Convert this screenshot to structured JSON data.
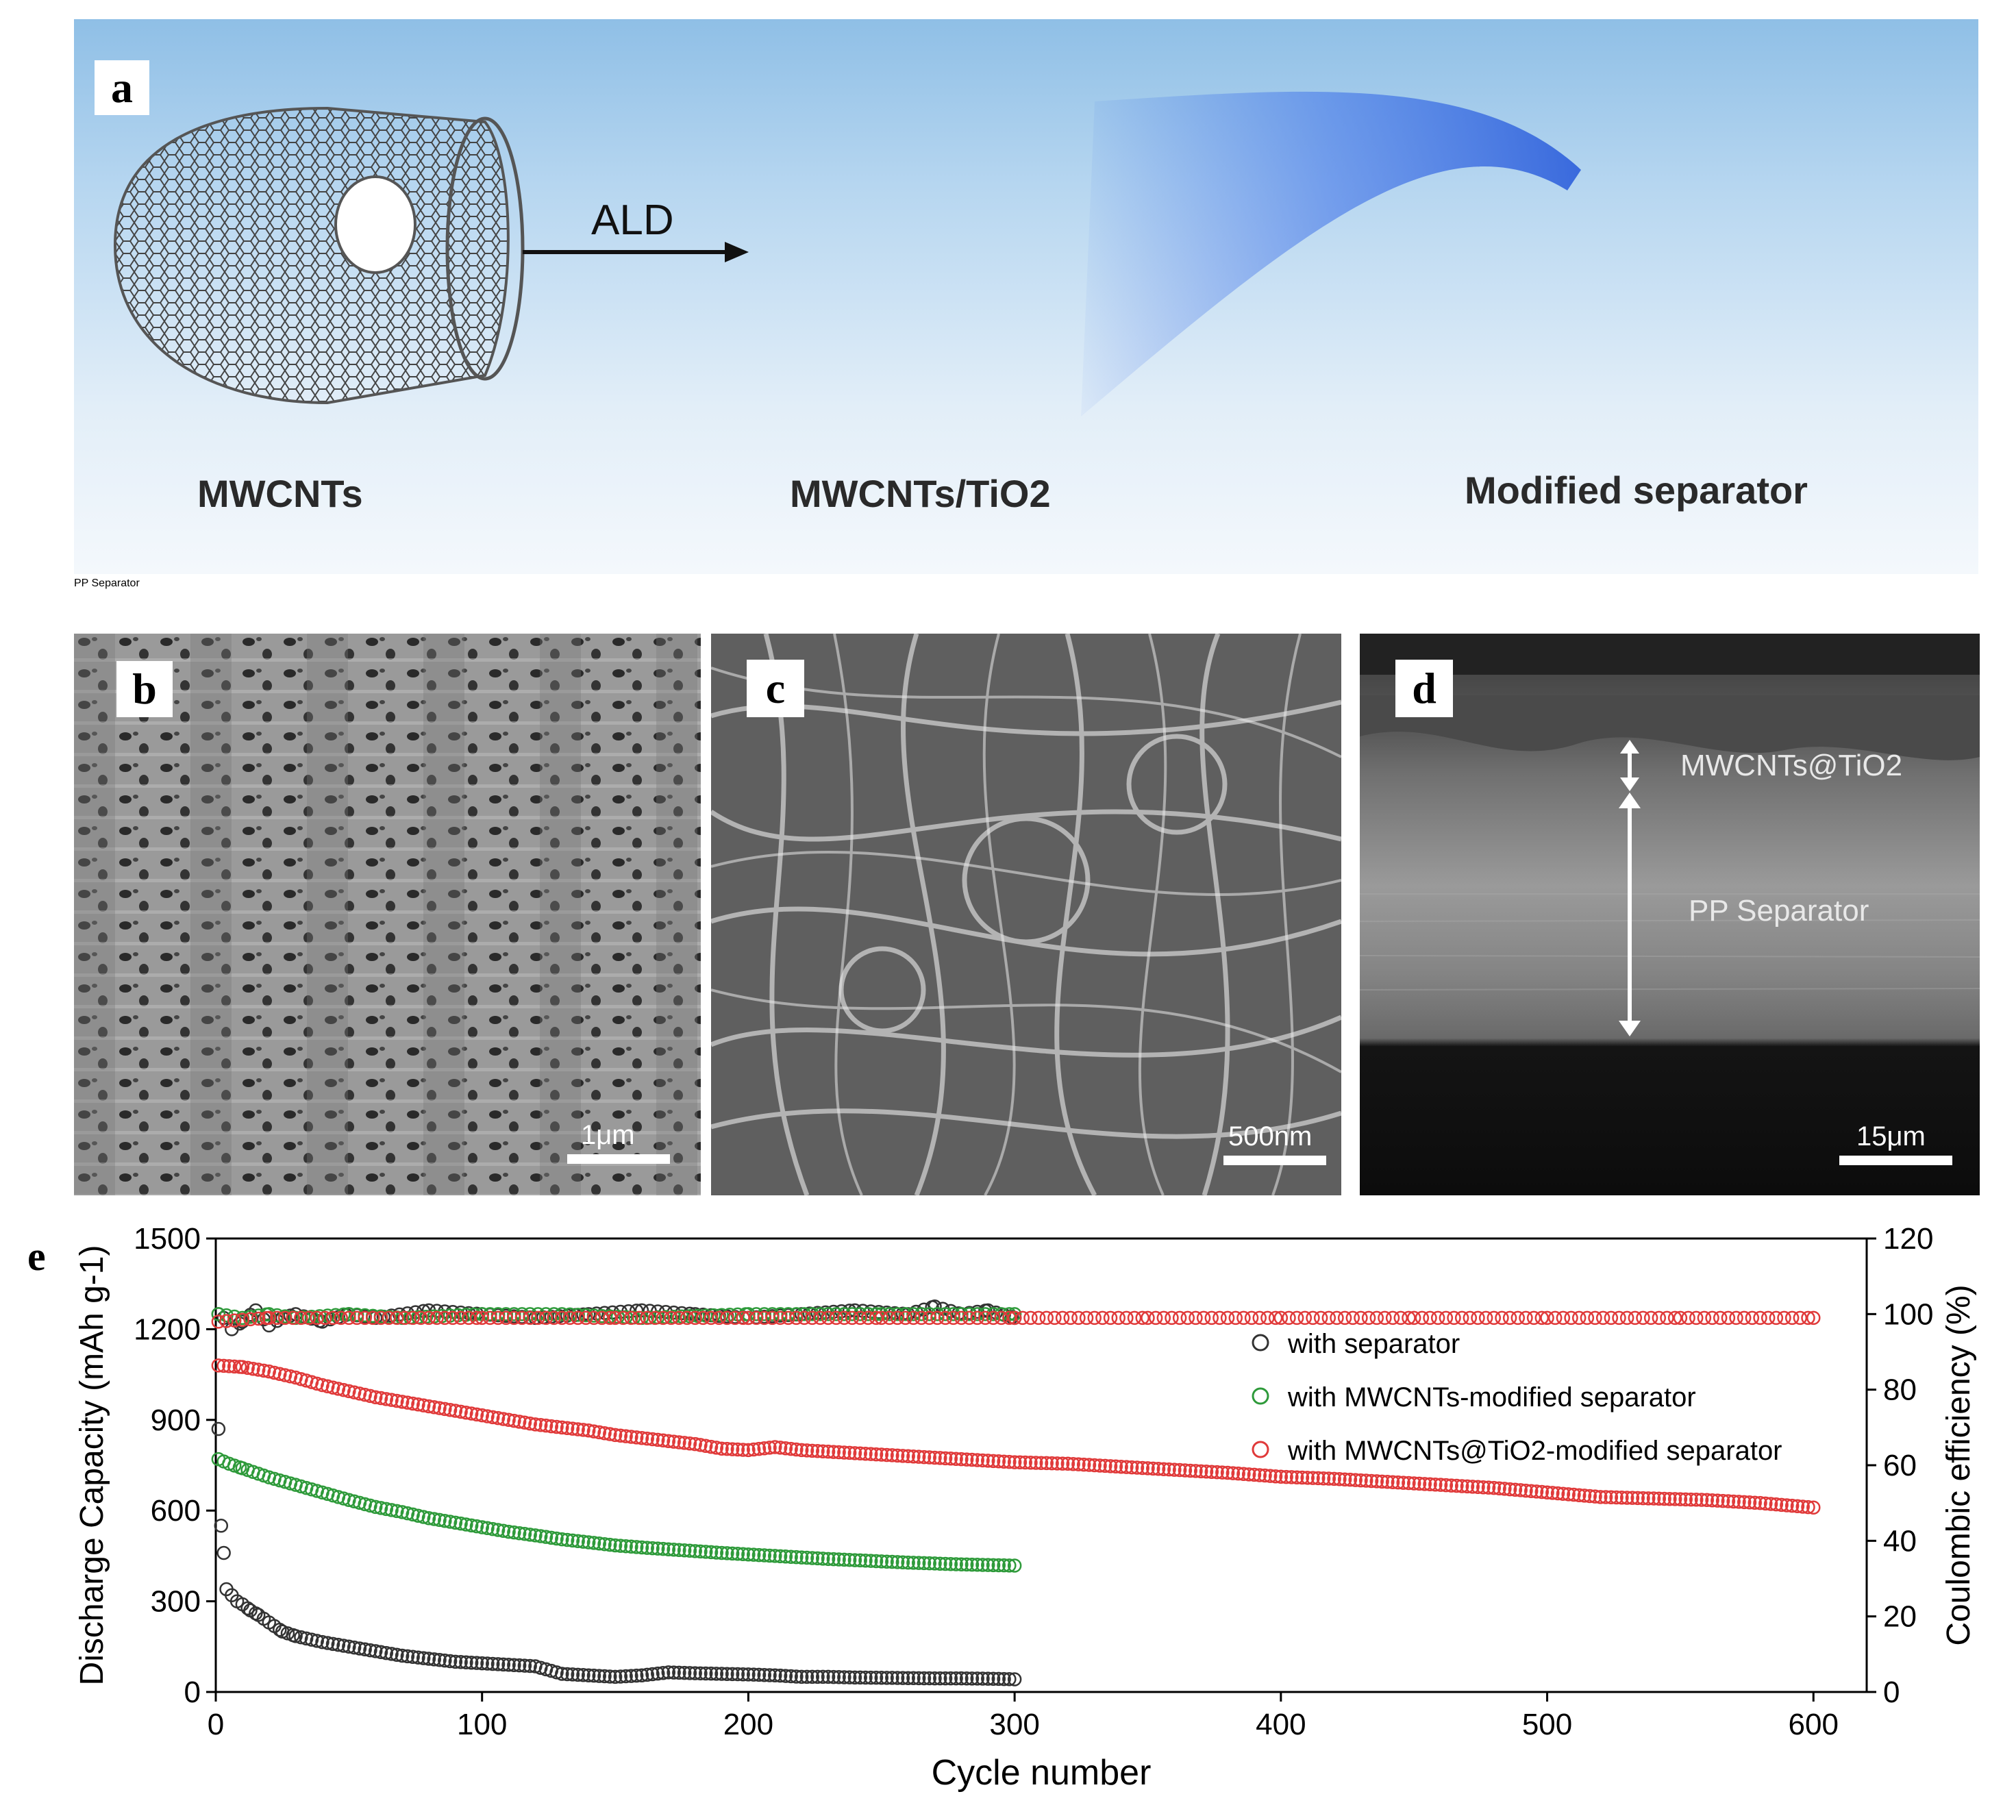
{
  "panel_a": {
    "letter": "a",
    "step_label": "ALD",
    "labels": [
      "MWCNTs",
      "MWCNTs/TiO2",
      "Modified separator"
    ],
    "separator_text": "PP Separator",
    "colors": {
      "sky": "#9cc7ea",
      "tube": "#5a5a5a",
      "tio2": "#7b3fb6",
      "disk": "#8a8a8a"
    }
  },
  "panel_b": {
    "letter": "b",
    "scale": "1μm"
  },
  "panel_c": {
    "letter": "c",
    "scale": "500nm"
  },
  "panel_d": {
    "letter": "d",
    "scale": "15μm",
    "annot_top": "MWCNTs@TiO2",
    "annot_mid": "PP Separator"
  },
  "panel_e": {
    "letter": "e"
  },
  "chart_data": {
    "type": "scatter",
    "xlabel": "Cycle number",
    "ylabel": "Discharge Capacity (mAh g-1)",
    "ylabel_right": "Coulombic efficiency (%)",
    "xlim": [
      0,
      620
    ],
    "ylim": [
      0,
      1500
    ],
    "ylim_right": [
      0,
      120
    ],
    "x_ticks": [
      0,
      100,
      200,
      300,
      400,
      500,
      600
    ],
    "y_ticks": [
      0,
      300,
      600,
      900,
      1200,
      1500
    ],
    "y_ticks_right": [
      0,
      20,
      40,
      60,
      80,
      100,
      120
    ],
    "legend_position": "right",
    "series": [
      {
        "name": "with separator",
        "color": "#333333",
        "capacity": [
          [
            1,
            870
          ],
          [
            2,
            550
          ],
          [
            3,
            460
          ],
          [
            4,
            340
          ],
          [
            6,
            320
          ],
          [
            8,
            300
          ],
          [
            10,
            290
          ],
          [
            13,
            270
          ],
          [
            16,
            255
          ],
          [
            20,
            230
          ],
          [
            25,
            200
          ],
          [
            30,
            185
          ],
          [
            40,
            165
          ],
          [
            50,
            150
          ],
          [
            60,
            135
          ],
          [
            70,
            120
          ],
          [
            80,
            110
          ],
          [
            90,
            100
          ],
          [
            100,
            95
          ],
          [
            110,
            90
          ],
          [
            120,
            85
          ],
          [
            130,
            60
          ],
          [
            140,
            55
          ],
          [
            150,
            50
          ],
          [
            160,
            55
          ],
          [
            170,
            65
          ],
          [
            180,
            62
          ],
          [
            190,
            60
          ],
          [
            200,
            58
          ],
          [
            210,
            55
          ],
          [
            220,
            50
          ],
          [
            230,
            50
          ],
          [
            240,
            48
          ],
          [
            250,
            47
          ],
          [
            260,
            46
          ],
          [
            270,
            45
          ],
          [
            280,
            45
          ],
          [
            290,
            44
          ],
          [
            300,
            42
          ]
        ],
        "ce_percent": [
          [
            1,
            100
          ],
          [
            3,
            99
          ],
          [
            6,
            96
          ],
          [
            10,
            98
          ],
          [
            15,
            101
          ],
          [
            20,
            97
          ],
          [
            25,
            99
          ],
          [
            30,
            100
          ],
          [
            40,
            98
          ],
          [
            50,
            100
          ],
          [
            60,
            99
          ],
          [
            80,
            101
          ],
          [
            100,
            100
          ],
          [
            120,
            99
          ],
          [
            140,
            100
          ],
          [
            160,
            101
          ],
          [
            180,
            100
          ],
          [
            200,
            99
          ],
          [
            220,
            100
          ],
          [
            240,
            101
          ],
          [
            260,
            100
          ],
          [
            270,
            102
          ],
          [
            280,
            100
          ],
          [
            290,
            101
          ],
          [
            300,
            99
          ]
        ]
      },
      {
        "name": "with MWCNTs-modified separator",
        "color": "#2e9a3a",
        "capacity": [
          [
            1,
            770
          ],
          [
            5,
            755
          ],
          [
            10,
            740
          ],
          [
            20,
            710
          ],
          [
            30,
            685
          ],
          [
            40,
            660
          ],
          [
            50,
            635
          ],
          [
            60,
            612
          ],
          [
            70,
            595
          ],
          [
            80,
            575
          ],
          [
            90,
            560
          ],
          [
            100,
            545
          ],
          [
            110,
            530
          ],
          [
            120,
            518
          ],
          [
            130,
            505
          ],
          [
            140,
            495
          ],
          [
            150,
            485
          ],
          [
            160,
            478
          ],
          [
            170,
            472
          ],
          [
            180,
            466
          ],
          [
            190,
            460
          ],
          [
            200,
            455
          ],
          [
            210,
            450
          ],
          [
            220,
            445
          ],
          [
            230,
            440
          ],
          [
            240,
            436
          ],
          [
            250,
            432
          ],
          [
            260,
            428
          ],
          [
            270,
            425
          ],
          [
            280,
            422
          ],
          [
            290,
            420
          ],
          [
            300,
            418
          ]
        ],
        "ce_percent": [
          [
            1,
            100
          ],
          [
            10,
            99
          ],
          [
            20,
            100
          ],
          [
            30,
            99
          ],
          [
            50,
            100
          ],
          [
            70,
            99
          ],
          [
            100,
            100
          ],
          [
            130,
            100
          ],
          [
            160,
            99
          ],
          [
            200,
            100
          ],
          [
            250,
            100
          ],
          [
            300,
            100
          ]
        ]
      },
      {
        "name": "with MWCNTs@TiO2-modified separator",
        "color": "#e03a3a",
        "capacity": [
          [
            1,
            1080
          ],
          [
            10,
            1075
          ],
          [
            20,
            1060
          ],
          [
            30,
            1040
          ],
          [
            40,
            1015
          ],
          [
            50,
            995
          ],
          [
            60,
            975
          ],
          [
            70,
            960
          ],
          [
            80,
            945
          ],
          [
            90,
            930
          ],
          [
            100,
            915
          ],
          [
            110,
            900
          ],
          [
            120,
            885
          ],
          [
            130,
            875
          ],
          [
            140,
            865
          ],
          [
            150,
            850
          ],
          [
            160,
            840
          ],
          [
            170,
            830
          ],
          [
            180,
            820
          ],
          [
            190,
            805
          ],
          [
            200,
            800
          ],
          [
            210,
            810
          ],
          [
            220,
            800
          ],
          [
            230,
            795
          ],
          [
            240,
            790
          ],
          [
            250,
            785
          ],
          [
            260,
            780
          ],
          [
            270,
            775
          ],
          [
            280,
            770
          ],
          [
            290,
            765
          ],
          [
            300,
            760
          ],
          [
            320,
            755
          ],
          [
            340,
            745
          ],
          [
            360,
            735
          ],
          [
            380,
            725
          ],
          [
            400,
            712
          ],
          [
            420,
            705
          ],
          [
            440,
            695
          ],
          [
            460,
            685
          ],
          [
            480,
            675
          ],
          [
            500,
            660
          ],
          [
            520,
            645
          ],
          [
            540,
            640
          ],
          [
            560,
            635
          ],
          [
            580,
            625
          ],
          [
            600,
            610
          ]
        ],
        "ce_percent": [
          [
            1,
            98
          ],
          [
            20,
            99
          ],
          [
            50,
            99
          ],
          [
            100,
            99
          ],
          [
            150,
            99
          ],
          [
            200,
            99
          ],
          [
            250,
            99
          ],
          [
            300,
            99
          ],
          [
            350,
            99
          ],
          [
            400,
            99
          ],
          [
            450,
            99
          ],
          [
            500,
            99
          ],
          [
            550,
            99
          ],
          [
            600,
            99
          ]
        ]
      }
    ]
  }
}
